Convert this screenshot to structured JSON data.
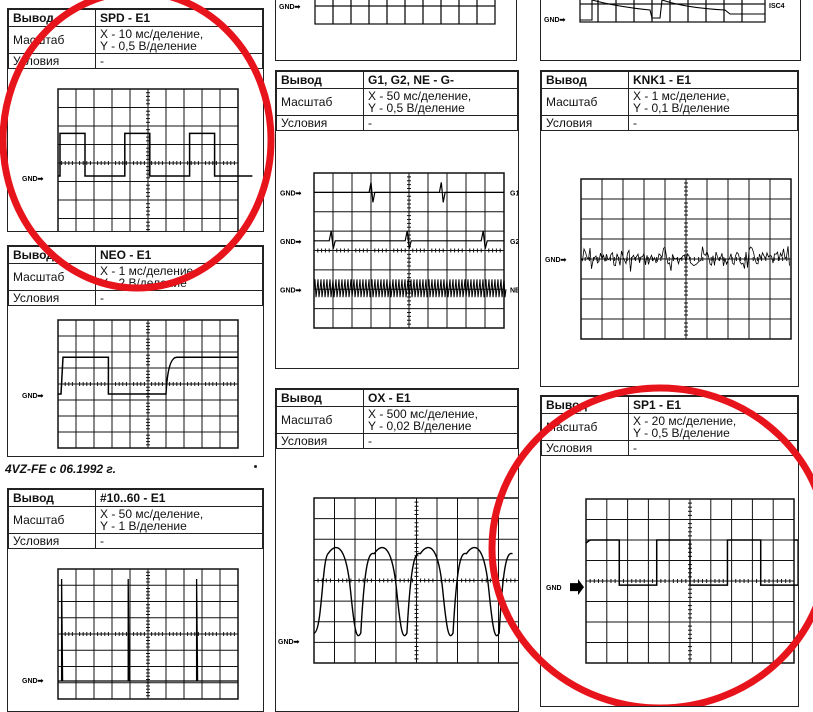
{
  "labels": {
    "output": "Вывод",
    "scale": "Масштаб",
    "conditions": "Условия"
  },
  "section_note": "4VZ-FE с 06.1992 г.",
  "panels": {
    "spd": {
      "pin": "SPD - E1",
      "x": "X - 10 мс/деление,",
      "y": "Y - 0,5 В/деление",
      "cond": "-",
      "gnd": "GND➡"
    },
    "neo": {
      "pin": "NEO - E1",
      "x": "X - 1 мс/деление,",
      "y": "Y - 2 В/деление",
      "cond": "-",
      "gnd": "GND➡"
    },
    "n10": {
      "pin": "#10..60 - E1",
      "x": "X - 50 мс/деление,",
      "y": "Y - 1 В/деление",
      "cond": "-",
      "gnd": "GND➡"
    },
    "topmid": {
      "gnd": "GND➡"
    },
    "topright": {
      "gnd": "GND➡",
      "label": "ISC4"
    },
    "g1": {
      "pin": "G1, G2, NE - G-",
      "x": "X - 50 мс/деление,",
      "y": "Y - 0,5 В/деление",
      "cond": "-",
      "gnd": "GND➡",
      "ch": [
        "G1",
        "G2",
        "NE"
      ]
    },
    "knk": {
      "pin": "KNK1 - E1",
      "x": "X - 1 мс/деление,",
      "y": "Y - 0,1 В/деление",
      "cond": "-",
      "gnd": "GND➡"
    },
    "ox": {
      "pin": "OX - E1",
      "x": "X - 500 мс/деление,",
      "y": "Y - 0,02 В/деление",
      "cond": "-",
      "gnd": "GND➡"
    },
    "sp1": {
      "pin": "SP1 - E1",
      "x": "X - 20 мс/деление,",
      "y": "Y - 0,5 В/деление",
      "cond": "-",
      "gnd": "GND"
    }
  },
  "annotation_color": "#e8141c"
}
